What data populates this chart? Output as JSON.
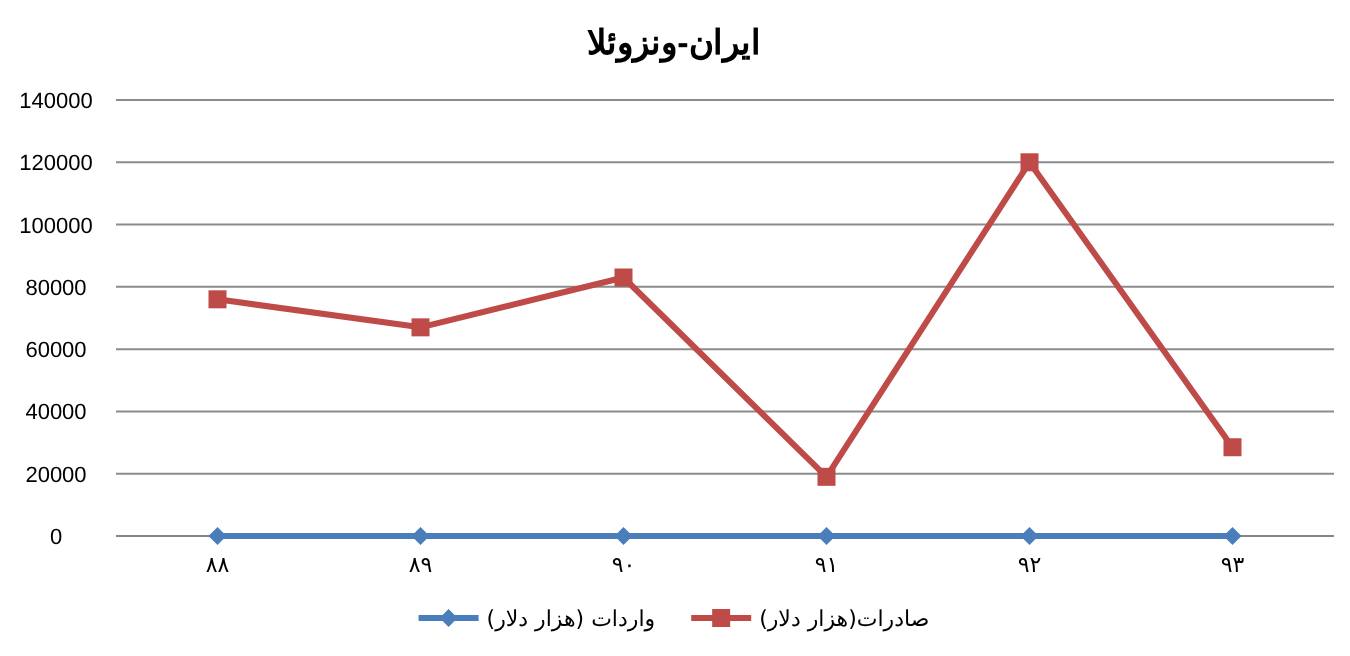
{
  "chart_data": {
    "type": "line",
    "title": "ایران-ونزوئلا",
    "categories": [
      "۸۸",
      "۸۹",
      "۹۰",
      "۹۱",
      "۹۲",
      "۹۳"
    ],
    "series": [
      {
        "name": "واردات (هزار دلار)",
        "color": "#4a7ebb",
        "marker": "diamond",
        "values": [
          0,
          0,
          0,
          0,
          0,
          0
        ]
      },
      {
        "name": "صادرات(هزار دلار)",
        "color": "#be4b48",
        "marker": "square",
        "values": [
          76000,
          67000,
          83000,
          19000,
          120000,
          28500
        ]
      }
    ],
    "ylim": [
      0,
      140000
    ],
    "yticks": [
      0,
      20000,
      40000,
      60000,
      80000,
      100000,
      120000,
      140000
    ],
    "grid": "y",
    "legend": "bottom"
  }
}
